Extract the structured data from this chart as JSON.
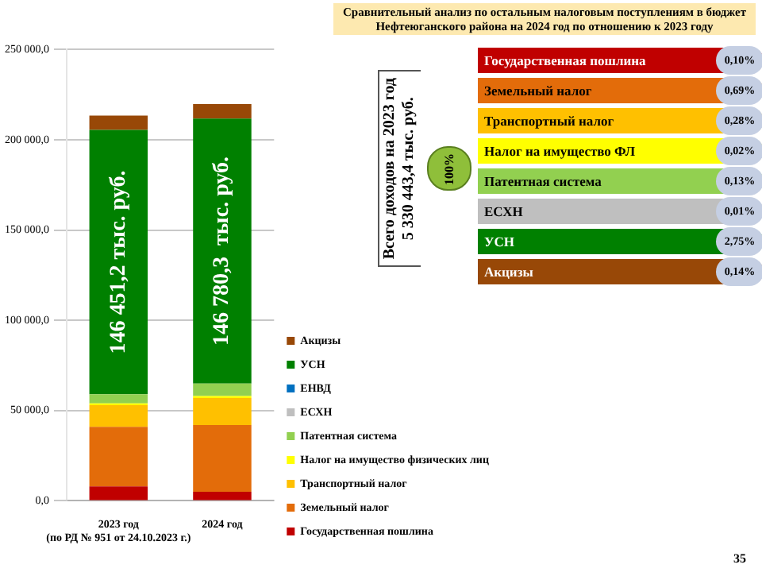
{
  "chart_data": [
    {
      "type": "bar",
      "stacked": true,
      "categories": [
        "2023 год\n(по РД № 951 от 24.10.2023 г.)",
        "2024 год"
      ],
      "series": [
        {
          "name": "Государственная пошлина",
          "color": "#c00000",
          "values": [
            8000,
            5000
          ]
        },
        {
          "name": "Земельный налог",
          "color": "#e36c0a",
          "values": [
            33000,
            37000
          ]
        },
        {
          "name": "Транспортный налог",
          "color": "#ffc000",
          "values": [
            12000,
            15000
          ]
        },
        {
          "name": "Налог на имущество физических лиц",
          "color": "#ffff00",
          "values": [
            1000,
            1000
          ]
        },
        {
          "name": "Патентная система",
          "color": "#92d050",
          "values": [
            5000,
            7000
          ]
        },
        {
          "name": "ЕСХН",
          "color": "#bfbfbf",
          "values": [
            0,
            0
          ]
        },
        {
          "name": "ЕНВД",
          "color": "#0070c0",
          "values": [
            0,
            0
          ]
        },
        {
          "name": "УСН",
          "color": "#008000",
          "values": [
            146451.2,
            146780.3
          ],
          "value_labels": [
            "146 451,2 тыс. руб.",
            "146 780,3  тыс. руб."
          ]
        },
        {
          "name": "Акцизы",
          "color": "#984807",
          "values": [
            8000,
            8000
          ]
        }
      ],
      "ylim": [
        0,
        250000
      ],
      "yticks": [
        {
          "value": 0,
          "label": "0,0"
        },
        {
          "value": 50000,
          "label": "50 000,0"
        },
        {
          "value": 100000,
          "label": "100 000,0"
        },
        {
          "value": 150000,
          "label": "150 000,0"
        },
        {
          "value": 200000,
          "label": "200 000,0"
        },
        {
          "value": 250000,
          "label": "250 000,0"
        }
      ],
      "grid": "y",
      "legend": "right",
      "annotations": [
        "35"
      ]
    },
    {
      "type": "other",
      "title": "Сравнительный анализ по остальным налоговым поступлениям  в бюджет  Нефтеюганского района на 2024 год по отношению к 2023 году",
      "categories": [
        "Государственная пошлина",
        "Земельный налог",
        "Транспортный налог",
        "Налог на имущество ФЛ",
        "Патентная система",
        "ЕСХН",
        "УСН",
        "Акцизы"
      ],
      "value_labels": [
        "0,10%",
        "0,69%",
        "0,28%",
        "0,02%",
        "0,13%",
        "0,01%",
        "2,75%",
        "0,14%"
      ],
      "colors": [
        "#c00000",
        "#e36c0a",
        "#ffc000",
        "#ffff00",
        "#92d050",
        "#bfbfbf",
        "#008000",
        "#984807"
      ],
      "annotations": [
        "Всего доходов на 2023 год",
        "5 330 443,4 тыс. руб.",
        "100%"
      ]
    }
  ]
}
